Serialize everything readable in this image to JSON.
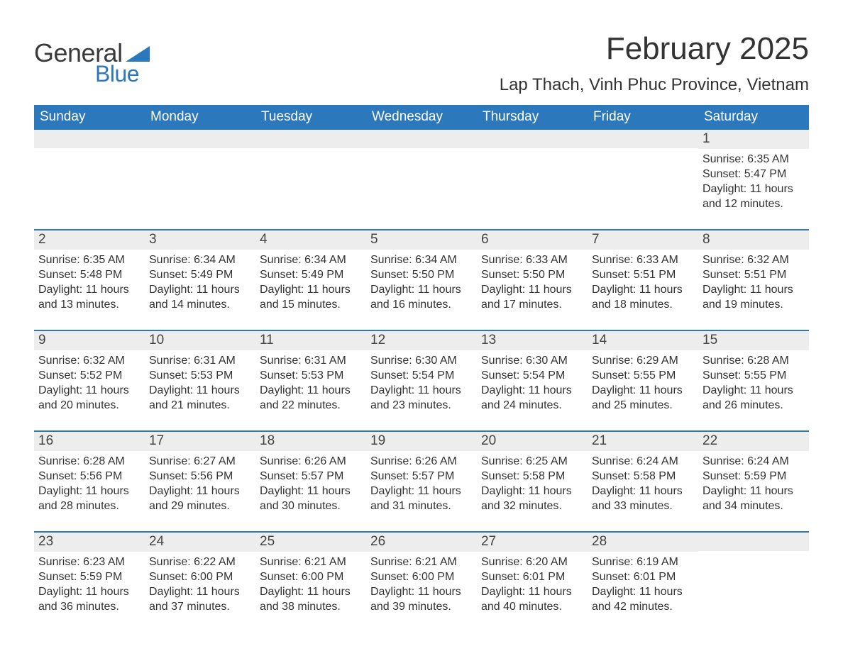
{
  "logo": {
    "word1": "General",
    "word2": "Blue",
    "triangle_color": "#2c78bd",
    "text_color_word1": "#3a3a3a",
    "text_color_word2": "#2c78bd"
  },
  "title": "February 2025",
  "location": "Lap Thach, Vinh Phuc Province, Vietnam",
  "colors": {
    "header_bg": "#2c78bd",
    "header_text": "#ffffff",
    "daynum_bg": "#ededed",
    "daynum_text": "#444444",
    "body_text": "#333333",
    "week_divider": "#2c78bd",
    "page_bg": "#ffffff"
  },
  "typography": {
    "month_title_fontsize": 44,
    "location_fontsize": 24,
    "weekday_fontsize": 19,
    "daynum_fontsize": 19,
    "body_fontsize": 16
  },
  "weekdays": [
    "Sunday",
    "Monday",
    "Tuesday",
    "Wednesday",
    "Thursday",
    "Friday",
    "Saturday"
  ],
  "sunrise_label": "Sunrise:",
  "sunset_label": "Sunset:",
  "daylight_label": "Daylight:",
  "weeks": [
    [
      {
        "day": "",
        "sunrise": "",
        "sunset": "",
        "daylight1": "",
        "daylight2": ""
      },
      {
        "day": "",
        "sunrise": "",
        "sunset": "",
        "daylight1": "",
        "daylight2": ""
      },
      {
        "day": "",
        "sunrise": "",
        "sunset": "",
        "daylight1": "",
        "daylight2": ""
      },
      {
        "day": "",
        "sunrise": "",
        "sunset": "",
        "daylight1": "",
        "daylight2": ""
      },
      {
        "day": "",
        "sunrise": "",
        "sunset": "",
        "daylight1": "",
        "daylight2": ""
      },
      {
        "day": "",
        "sunrise": "",
        "sunset": "",
        "daylight1": "",
        "daylight2": ""
      },
      {
        "day": "1",
        "sunrise": "6:35 AM",
        "sunset": "5:47 PM",
        "daylight1": "11 hours",
        "daylight2": "and 12 minutes."
      }
    ],
    [
      {
        "day": "2",
        "sunrise": "6:35 AM",
        "sunset": "5:48 PM",
        "daylight1": "11 hours",
        "daylight2": "and 13 minutes."
      },
      {
        "day": "3",
        "sunrise": "6:34 AM",
        "sunset": "5:49 PM",
        "daylight1": "11 hours",
        "daylight2": "and 14 minutes."
      },
      {
        "day": "4",
        "sunrise": "6:34 AM",
        "sunset": "5:49 PM",
        "daylight1": "11 hours",
        "daylight2": "and 15 minutes."
      },
      {
        "day": "5",
        "sunrise": "6:34 AM",
        "sunset": "5:50 PM",
        "daylight1": "11 hours",
        "daylight2": "and 16 minutes."
      },
      {
        "day": "6",
        "sunrise": "6:33 AM",
        "sunset": "5:50 PM",
        "daylight1": "11 hours",
        "daylight2": "and 17 minutes."
      },
      {
        "day": "7",
        "sunrise": "6:33 AM",
        "sunset": "5:51 PM",
        "daylight1": "11 hours",
        "daylight2": "and 18 minutes."
      },
      {
        "day": "8",
        "sunrise": "6:32 AM",
        "sunset": "5:51 PM",
        "daylight1": "11 hours",
        "daylight2": "and 19 minutes."
      }
    ],
    [
      {
        "day": "9",
        "sunrise": "6:32 AM",
        "sunset": "5:52 PM",
        "daylight1": "11 hours",
        "daylight2": "and 20 minutes."
      },
      {
        "day": "10",
        "sunrise": "6:31 AM",
        "sunset": "5:53 PM",
        "daylight1": "11 hours",
        "daylight2": "and 21 minutes."
      },
      {
        "day": "11",
        "sunrise": "6:31 AM",
        "sunset": "5:53 PM",
        "daylight1": "11 hours",
        "daylight2": "and 22 minutes."
      },
      {
        "day": "12",
        "sunrise": "6:30 AM",
        "sunset": "5:54 PM",
        "daylight1": "11 hours",
        "daylight2": "and 23 minutes."
      },
      {
        "day": "13",
        "sunrise": "6:30 AM",
        "sunset": "5:54 PM",
        "daylight1": "11 hours",
        "daylight2": "and 24 minutes."
      },
      {
        "day": "14",
        "sunrise": "6:29 AM",
        "sunset": "5:55 PM",
        "daylight1": "11 hours",
        "daylight2": "and 25 minutes."
      },
      {
        "day": "15",
        "sunrise": "6:28 AM",
        "sunset": "5:55 PM",
        "daylight1": "11 hours",
        "daylight2": "and 26 minutes."
      }
    ],
    [
      {
        "day": "16",
        "sunrise": "6:28 AM",
        "sunset": "5:56 PM",
        "daylight1": "11 hours",
        "daylight2": "and 28 minutes."
      },
      {
        "day": "17",
        "sunrise": "6:27 AM",
        "sunset": "5:56 PM",
        "daylight1": "11 hours",
        "daylight2": "and 29 minutes."
      },
      {
        "day": "18",
        "sunrise": "6:26 AM",
        "sunset": "5:57 PM",
        "daylight1": "11 hours",
        "daylight2": "and 30 minutes."
      },
      {
        "day": "19",
        "sunrise": "6:26 AM",
        "sunset": "5:57 PM",
        "daylight1": "11 hours",
        "daylight2": "and 31 minutes."
      },
      {
        "day": "20",
        "sunrise": "6:25 AM",
        "sunset": "5:58 PM",
        "daylight1": "11 hours",
        "daylight2": "and 32 minutes."
      },
      {
        "day": "21",
        "sunrise": "6:24 AM",
        "sunset": "5:58 PM",
        "daylight1": "11 hours",
        "daylight2": "and 33 minutes."
      },
      {
        "day": "22",
        "sunrise": "6:24 AM",
        "sunset": "5:59 PM",
        "daylight1": "11 hours",
        "daylight2": "and 34 minutes."
      }
    ],
    [
      {
        "day": "23",
        "sunrise": "6:23 AM",
        "sunset": "5:59 PM",
        "daylight1": "11 hours",
        "daylight2": "and 36 minutes."
      },
      {
        "day": "24",
        "sunrise": "6:22 AM",
        "sunset": "6:00 PM",
        "daylight1": "11 hours",
        "daylight2": "and 37 minutes."
      },
      {
        "day": "25",
        "sunrise": "6:21 AM",
        "sunset": "6:00 PM",
        "daylight1": "11 hours",
        "daylight2": "and 38 minutes."
      },
      {
        "day": "26",
        "sunrise": "6:21 AM",
        "sunset": "6:00 PM",
        "daylight1": "11 hours",
        "daylight2": "and 39 minutes."
      },
      {
        "day": "27",
        "sunrise": "6:20 AM",
        "sunset": "6:01 PM",
        "daylight1": "11 hours",
        "daylight2": "and 40 minutes."
      },
      {
        "day": "28",
        "sunrise": "6:19 AM",
        "sunset": "6:01 PM",
        "daylight1": "11 hours",
        "daylight2": "and 42 minutes."
      },
      {
        "day": "",
        "sunrise": "",
        "sunset": "",
        "daylight1": "",
        "daylight2": ""
      }
    ]
  ]
}
